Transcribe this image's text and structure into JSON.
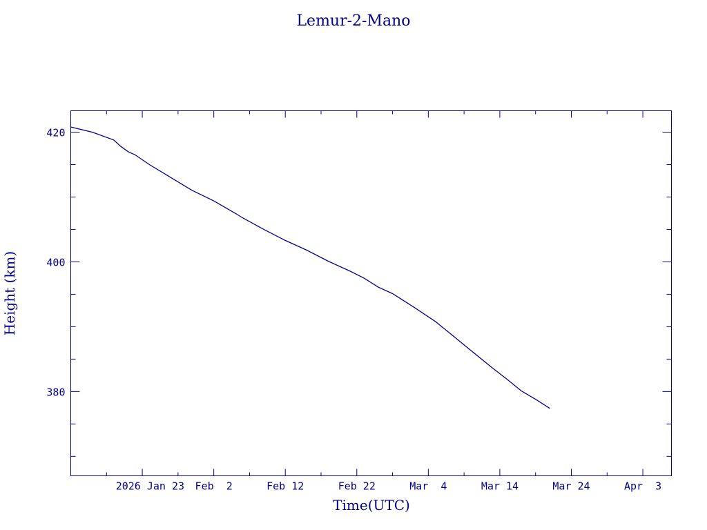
{
  "chart_data": {
    "type": "line",
    "title": "Lemur-2-Mano",
    "xlabel": "Time(UTC)",
    "ylabel": "Height (km)",
    "x_tick_labels": [
      "2026 Jan 23",
      "Feb  2",
      "Feb 12",
      "Feb 22",
      "Mar  4",
      "Mar 14",
      "Mar 24",
      "Apr  3"
    ],
    "x_tick_dates": [
      "2026-01-23",
      "2026-02-02",
      "2026-02-12",
      "2026-02-22",
      "2026-03-04",
      "2026-03-14",
      "2026-03-24",
      "2026-04-03"
    ],
    "xlim": [
      "2026-01-13",
      "2026-04-07"
    ],
    "y_tick_labels": [
      "380",
      "400",
      "420"
    ],
    "y_tick_values": [
      380,
      400,
      420
    ],
    "ylim": [
      367,
      423.3
    ],
    "grid": false,
    "color": "#00008b",
    "series": [
      {
        "x": [
          "2026-01-13",
          "2026-01-16",
          "2026-01-19",
          "2026-01-20",
          "2026-01-21",
          "2026-01-22",
          "2026-01-24",
          "2026-01-27",
          "2026-01-30",
          "2026-02-02",
          "2026-02-05",
          "2026-02-06",
          "2026-02-09",
          "2026-02-12",
          "2026-02-15",
          "2026-02-18",
          "2026-02-21",
          "2026-02-23",
          "2026-02-25",
          "2026-02-27",
          "2026-03-02",
          "2026-03-05",
          "2026-03-07",
          "2026-03-10",
          "2026-03-13",
          "2026-03-15",
          "2026-03-17",
          "2026-03-19",
          "2026-03-21"
        ],
        "y": [
          420.8,
          420.0,
          418.8,
          417.8,
          417.0,
          416.5,
          415.0,
          413.0,
          411.0,
          409.4,
          407.5,
          406.8,
          405.0,
          403.3,
          401.8,
          400.1,
          398.6,
          397.5,
          396.1,
          395.1,
          393.0,
          390.8,
          389.0,
          386.3,
          383.6,
          381.9,
          380.1,
          378.8,
          377.4
        ]
      }
    ]
  }
}
